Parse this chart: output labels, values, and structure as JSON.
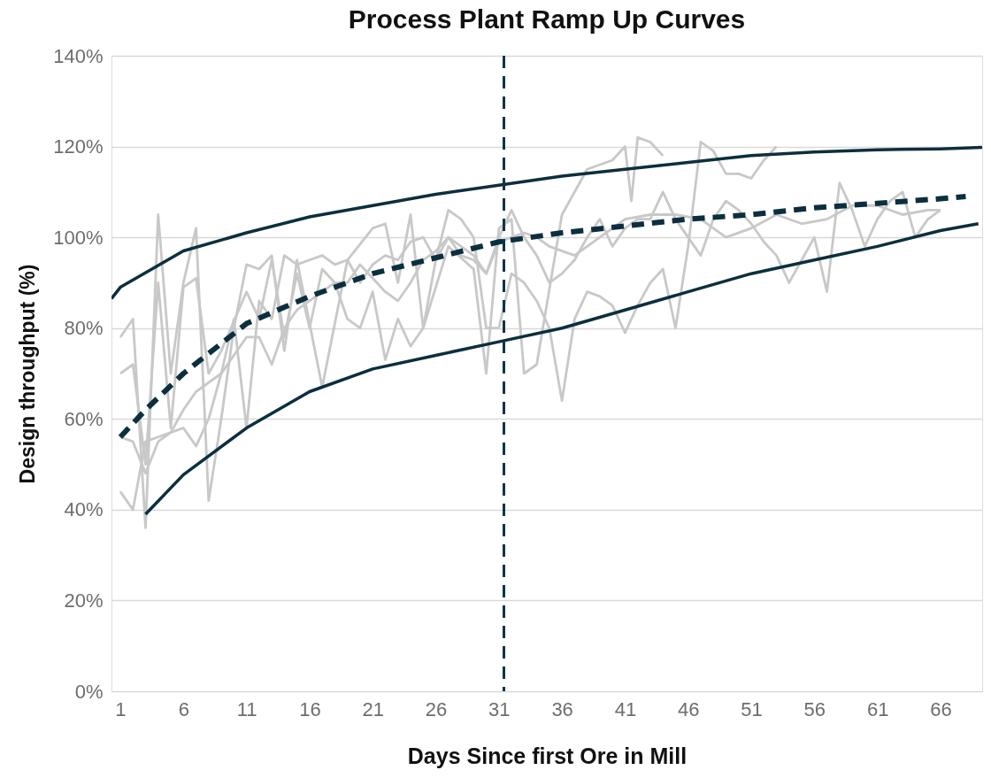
{
  "chart_data": {
    "type": "line",
    "title": "Process Plant Ramp Up Curves",
    "xlabel": "Days Since first Ore in Mill",
    "ylabel": "Design throughput (%)",
    "xlim": [
      0.3,
      69.3
    ],
    "xticks": [
      1,
      6,
      11,
      16,
      21,
      26,
      31,
      36,
      41,
      46,
      51,
      56,
      61,
      66
    ],
    "ylim": [
      0,
      140
    ],
    "yticks": [
      {
        "value": 0,
        "label": "0%"
      },
      {
        "value": 20,
        "label": "20%"
      },
      {
        "value": 40,
        "label": "40%"
      },
      {
        "value": 60,
        "label": "60%"
      },
      {
        "value": 80,
        "label": "80%"
      },
      {
        "value": 100,
        "label": "100%"
      },
      {
        "value": 120,
        "label": "120%"
      },
      {
        "value": 140,
        "label": "140%"
      }
    ],
    "grid": "y",
    "marker": "none",
    "ref_lines": [
      {
        "axis": "x",
        "value": 31.4,
        "color": "#0b3545",
        "line_style": "dashed"
      }
    ],
    "series": [
      {
        "color": "#c8c8c8",
        "line_style": "solid",
        "x": [
          1,
          2,
          3,
          4,
          5,
          6,
          7,
          8,
          9,
          10,
          11,
          12,
          13,
          14,
          15,
          17,
          19,
          21,
          22,
          23,
          24,
          25,
          27,
          29,
          30,
          31,
          32,
          33,
          34,
          36,
          38,
          40,
          41,
          41.5,
          42,
          43,
          44
        ],
        "values": [
          78,
          82,
          36,
          105,
          70,
          90,
          102,
          42,
          60,
          80,
          94,
          93,
          96,
          75,
          95,
          67,
          95,
          102,
          103,
          90,
          105,
          80,
          98,
          93,
          70,
          102,
          104,
          70,
          72,
          105,
          115,
          117,
          120,
          108,
          122,
          121,
          118
        ]
      },
      {
        "color": "#c8c8c8",
        "line_style": "solid",
        "x": [
          1,
          2,
          3,
          4,
          5,
          6,
          7,
          8,
          9,
          11,
          12,
          13,
          14,
          15,
          16,
          17,
          18,
          19,
          20,
          21,
          22,
          23,
          24,
          25,
          26,
          27,
          28,
          29,
          30,
          31,
          32,
          33,
          34,
          35,
          36,
          37,
          38,
          39,
          40,
          41,
          42,
          43,
          44,
          45,
          46,
          47,
          48,
          49,
          50,
          51,
          52,
          53
        ],
        "values": [
          70,
          72,
          50,
          90,
          58,
          89,
          91,
          70,
          75,
          88,
          82,
          95,
          78,
          92,
          80,
          93,
          90,
          82,
          80,
          88,
          73,
          82,
          76,
          80,
          95,
          106,
          104,
          100,
          80,
          80,
          92,
          90,
          86,
          80,
          64,
          82,
          88,
          87,
          85,
          79,
          85,
          90,
          93,
          80,
          98,
          121,
          119,
          114,
          114,
          113,
          117,
          120
        ]
      },
      {
        "color": "#c8c8c8",
        "line_style": "solid",
        "x": [
          1,
          2,
          3,
          4,
          5,
          6,
          7,
          8,
          9,
          10,
          11,
          12,
          13,
          14,
          15,
          16,
          17,
          18,
          19,
          20,
          21,
          22,
          23,
          24,
          25,
          26,
          27,
          28,
          29,
          30,
          31,
          32,
          33,
          34,
          35,
          37,
          39,
          41,
          43,
          45,
          47,
          49,
          51,
          53,
          55,
          57,
          59,
          61,
          63,
          65,
          66
        ],
        "values": [
          56,
          55,
          48,
          55,
          57,
          58,
          54,
          60,
          70,
          82,
          58,
          86,
          82,
          96,
          94,
          95,
          96,
          94,
          95,
          90,
          94,
          96,
          95,
          99,
          100,
          95,
          100,
          96,
          95,
          92,
          99,
          100,
          101,
          100,
          98,
          96,
          100,
          104,
          105,
          105,
          104,
          100,
          102,
          105,
          103,
          104,
          107,
          107,
          105,
          106,
          106
        ]
      },
      {
        "color": "#c8c8c8",
        "line_style": "solid",
        "x": [
          1,
          2,
          3,
          4,
          5,
          6,
          7,
          8,
          9,
          10,
          11,
          12,
          13,
          14,
          15,
          16,
          17,
          18,
          19,
          20,
          21,
          22,
          23,
          24,
          25,
          26,
          27,
          28,
          29,
          30,
          31,
          32,
          33,
          34,
          35,
          36,
          37,
          38,
          39,
          40,
          41,
          42,
          43,
          44,
          45,
          46,
          47,
          48,
          49,
          50,
          51,
          52,
          53,
          54,
          55,
          56,
          57,
          58,
          59,
          60,
          61,
          62,
          63,
          64,
          65,
          66
        ],
        "values": [
          44,
          40,
          55,
          56,
          57,
          62,
          66,
          68,
          70,
          74,
          78,
          78,
          72,
          80,
          84,
          86,
          88,
          90,
          90,
          94,
          91,
          88,
          86,
          90,
          95,
          97,
          100,
          98,
          96,
          92,
          100,
          106,
          100,
          96,
          90,
          92,
          95,
          100,
          104,
          98,
          102,
          104,
          104,
          110,
          104,
          100,
          96,
          104,
          108,
          106,
          103,
          99,
          96,
          90,
          95,
          100,
          88,
          112,
          106,
          98,
          104,
          108,
          110,
          100,
          104,
          106
        ]
      },
      {
        "color": "#0b2f3e",
        "line_style": "solid",
        "x": [
          0.3,
          1,
          6,
          11,
          16,
          21,
          26,
          31,
          36,
          41,
          46,
          51,
          56,
          61,
          66,
          69.3
        ],
        "values": [
          86.5,
          89,
          97,
          101,
          104.5,
          107,
          109.5,
          111.5,
          113.5,
          115,
          116.5,
          118,
          118.8,
          119.3,
          119.5,
          119.8
        ]
      },
      {
        "color": "#0b2f3e",
        "line_style": "solid",
        "x": [
          3,
          6,
          11,
          16,
          21,
          26,
          31,
          36,
          41,
          46,
          51,
          56,
          61,
          66,
          69
        ],
        "values": [
          39,
          47.7,
          58,
          66,
          71,
          74,
          77,
          80,
          84,
          88,
          92,
          95,
          98,
          101.5,
          103
        ]
      },
      {
        "color": "#0b2f3e",
        "line_style": "dashed",
        "x": [
          1,
          3,
          6,
          11,
          16,
          21,
          26,
          31,
          36,
          41,
          46,
          51,
          56,
          61,
          66,
          68
        ],
        "values": [
          56,
          62,
          70,
          81,
          87,
          92,
          95.5,
          99,
          101,
          102.5,
          104,
          105,
          106.5,
          107.5,
          108.5,
          109
        ]
      }
    ]
  }
}
